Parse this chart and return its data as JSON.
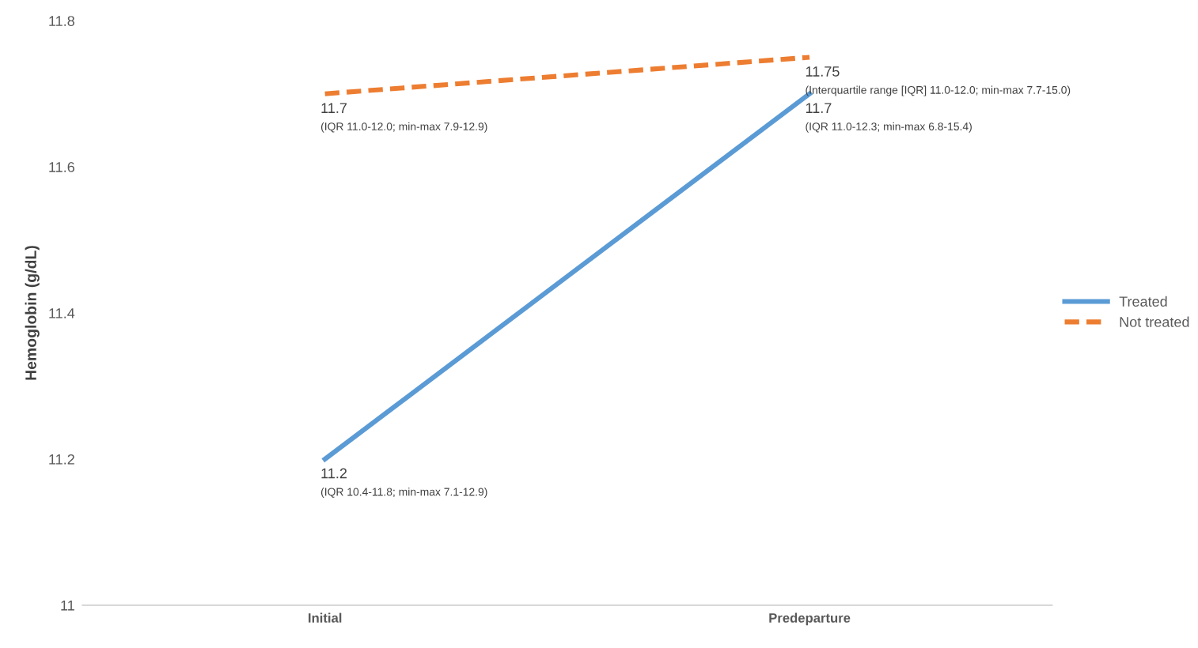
{
  "chart_data": {
    "type": "line",
    "ylabel": "Hemoglobin (g/dL)",
    "categories": [
      "Initial",
      "Predeparture"
    ],
    "series": [
      {
        "name": "Treated",
        "color": "#5b9bd5",
        "line_style": "solid",
        "values": [
          11.2,
          11.7
        ],
        "value_labels": [
          "11.2",
          "11.7"
        ]
      },
      {
        "name": "Not treated",
        "color": "#ed7d31",
        "line_style": "dashed",
        "values": [
          11.7,
          11.75
        ],
        "value_labels": [
          "11.7",
          "11.75"
        ]
      }
    ],
    "annotations": [
      {
        "text": "(IQR 10.4-11.8; min-max 7.1-12.9)",
        "x": "Initial",
        "y": 11.2
      },
      {
        "text": "(IQR 11.0-12.3; min-max 6.8-15.4)",
        "x": "Predeparture",
        "y": 11.7
      },
      {
        "text": "(IQR 11.0-12.0; min-max 7.9-12.9)",
        "x": "Initial",
        "y": 11.7
      },
      {
        "text": "(Interquartile range [IQR] 11.0-12.0; min-max 7.7-15.0)",
        "x": "Predeparture",
        "y": 11.75
      }
    ],
    "ylim": [
      11,
      11.8
    ],
    "yticks": [
      11,
      11.2,
      11.4,
      11.6,
      11.8
    ],
    "grid": false,
    "legend": "right",
    "marker": "none"
  }
}
